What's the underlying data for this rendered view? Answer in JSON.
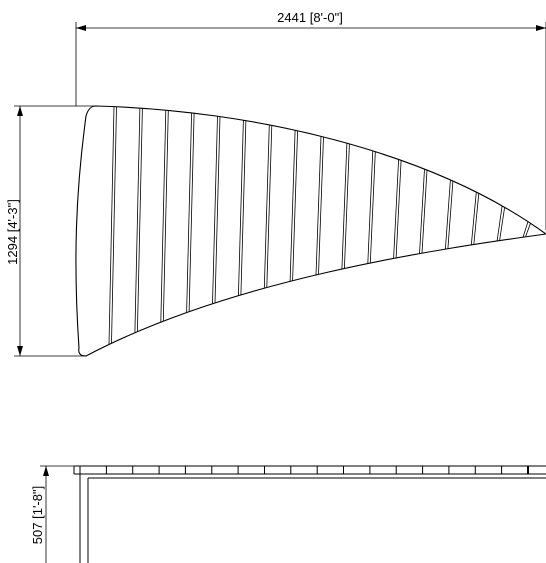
{
  "drawing": {
    "width_dimension_label": "2441 [8'-0\"]",
    "height_dimension_label": "1294 [4'-3\"]",
    "side_height_dimension_label": "507 [1'-8\"]",
    "slat_count": 17,
    "line_color": "#000000",
    "background_color": "#ffffff"
  }
}
